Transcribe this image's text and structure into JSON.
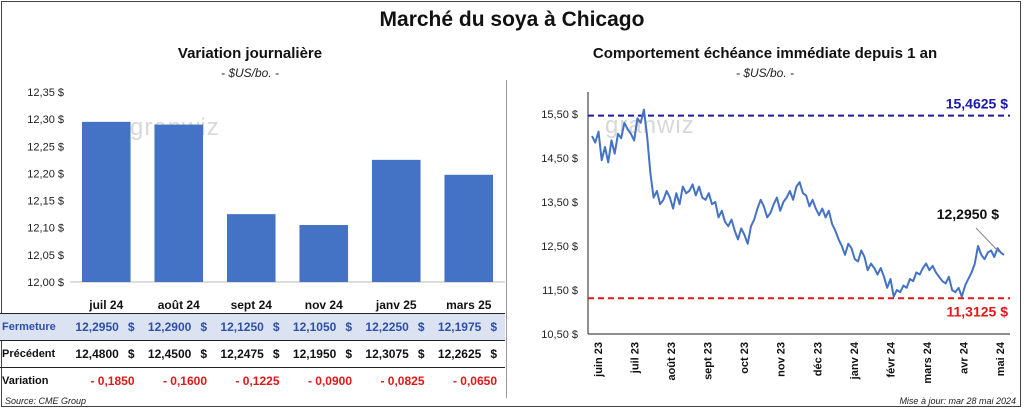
{
  "title": "Marché du soya à Chicago",
  "left": {
    "title": "Variation journalière",
    "unit": "- $US/bo. -"
  },
  "right": {
    "title": "Comportement échéance immédiate depuis 1 an",
    "unit": "- $US/bo. -"
  },
  "colors": {
    "bar": "#4472c4",
    "line": "#4472c4",
    "high": "#1a1aa8",
    "low": "#e01818"
  },
  "watermark": "granwiz",
  "source": "Source: CME Group",
  "updated": "Mise à jour: mar 28 mai 2024",
  "chart_data": [
    {
      "type": "bar",
      "categories": [
        "juil 24",
        "août 24",
        "sept 24",
        "nov 24",
        "janv 25",
        "mars 25"
      ],
      "values": [
        12.295,
        12.29,
        12.125,
        12.105,
        12.225,
        12.1975
      ],
      "ylim": [
        12.0,
        12.35
      ],
      "yticks": [
        "12,00 $",
        "12,05 $",
        "12,10 $",
        "12,15 $",
        "12,20 $",
        "12,25 $",
        "12,30 $",
        "12,35 $"
      ],
      "grid": false
    },
    {
      "type": "line",
      "ylim": [
        10.5,
        16.0
      ],
      "yticks": [
        "10,50 $",
        "11,50 $",
        "12,50 $",
        "13,50 $",
        "14,50 $",
        "15,50 $"
      ],
      "xticks": [
        "juin 23",
        "juil 23",
        "août 23",
        "sept 23",
        "oct 23",
        "nov 23",
        "déc 23",
        "janv 24",
        "févr 24",
        "mars 24",
        "avr 24",
        "mai 24"
      ],
      "values": [
        15.0,
        14.85,
        15.1,
        14.45,
        14.75,
        14.4,
        14.9,
        14.6,
        15.05,
        14.95,
        15.3,
        15.15,
        15.05,
        14.9,
        15.4,
        15.3,
        15.6,
        15.0,
        14.15,
        13.6,
        13.75,
        13.45,
        13.55,
        13.75,
        13.6,
        13.35,
        13.7,
        13.45,
        13.85,
        13.7,
        13.75,
        13.9,
        13.65,
        13.85,
        13.6,
        13.55,
        13.7,
        13.45,
        13.5,
        13.15,
        13.3,
        13.05,
        12.95,
        13.1,
        12.85,
        12.65,
        12.9,
        12.75,
        12.55,
        12.95,
        13.1,
        13.35,
        13.55,
        13.4,
        13.15,
        13.25,
        13.45,
        13.6,
        13.3,
        13.5,
        13.6,
        13.75,
        13.55,
        13.85,
        13.95,
        13.7,
        13.65,
        13.4,
        13.55,
        13.35,
        13.2,
        13.35,
        13.15,
        13.3,
        13.0,
        12.85,
        12.65,
        12.5,
        12.3,
        12.55,
        12.45,
        12.2,
        12.15,
        12.4,
        12.25,
        11.95,
        12.1,
        12.0,
        11.85,
        12.0,
        11.8,
        11.55,
        11.75,
        11.35,
        11.5,
        11.45,
        11.6,
        11.55,
        11.75,
        11.7,
        11.9,
        11.85,
        12.0,
        12.1,
        11.95,
        12.05,
        11.9,
        11.8,
        11.7,
        11.65,
        11.8,
        11.5,
        11.45,
        11.55,
        11.35,
        11.6,
        11.75,
        11.9,
        12.1,
        12.5,
        12.3,
        12.2,
        12.35,
        12.4,
        12.25,
        12.45,
        12.35,
        12.295
      ],
      "high": 15.4625,
      "high_label": "15,4625 $",
      "low": 11.3125,
      "low_label": "11,3125 $",
      "last_label": "12,2950 $"
    }
  ],
  "table": {
    "rows": [
      {
        "label": "Fermeture",
        "values": [
          "12,2950",
          "12,2900",
          "12,1250",
          "12,1050",
          "12,2250",
          "12,1975"
        ],
        "unit": "$"
      },
      {
        "label": "Précédent",
        "values": [
          "12,4800",
          "12,4500",
          "12,2475",
          "12,1950",
          "12,3075",
          "12,2625"
        ],
        "unit": "$"
      },
      {
        "label": "Variation",
        "values": [
          "- 0,1850",
          "- 0,1600",
          "- 0,1225",
          "- 0,0900",
          "- 0,0825",
          "- 0,0650"
        ],
        "unit": ""
      }
    ]
  }
}
